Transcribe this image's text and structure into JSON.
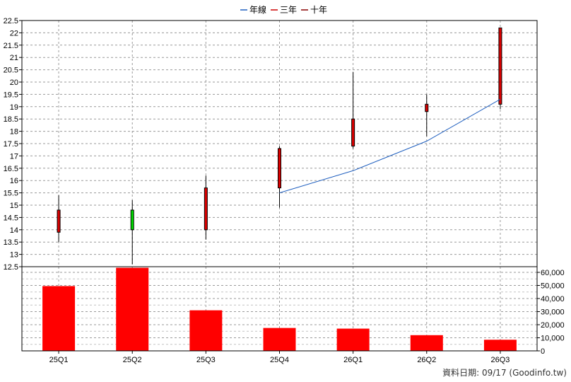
{
  "chart_data": [
    {
      "type": "candlestick",
      "legend": [
        {
          "name": "年線",
          "color": "#1f5fbf"
        },
        {
          "name": "三年",
          "color": "#cc0000"
        },
        {
          "name": "十年",
          "color": "#880000"
        }
      ],
      "legend_placement": "top-center",
      "categories": [
        "25Q1",
        "25Q2",
        "25Q3",
        "25Q4",
        "26Q1",
        "26Q2",
        "26Q3"
      ],
      "ohlc": [
        {
          "open": 13.9,
          "high": 15.4,
          "low": 13.5,
          "close": 14.8
        },
        {
          "open": 14.8,
          "high": 15.2,
          "low": 12.6,
          "close": 14.0
        },
        {
          "open": 14.0,
          "high": 16.2,
          "low": 13.6,
          "close": 15.7
        },
        {
          "open": 15.7,
          "high": 17.4,
          "low": 14.9,
          "close": 17.3
        },
        {
          "open": 17.4,
          "high": 20.4,
          "low": 17.3,
          "close": 18.5
        },
        {
          "open": 18.8,
          "high": 19.5,
          "low": 17.8,
          "close": 19.1
        },
        {
          "open": 19.1,
          "high": 22.2,
          "low": 18.9,
          "close": 22.2
        }
      ],
      "up_color": "#dd0000",
      "down_color": "#00dd00",
      "line_series": [
        {
          "name": "年線",
          "color": "#1f5fbf",
          "start_index": 3,
          "values": [
            15.5,
            16.4,
            17.6,
            19.3
          ]
        }
      ],
      "yticks": [
        "12.5",
        "13",
        "13.5",
        "14",
        "14.5",
        "15",
        "15.5",
        "16",
        "16.5",
        "17",
        "17.5",
        "18",
        "18.5",
        "19",
        "19.5",
        "20",
        "20.5",
        "21",
        "21.5",
        "22",
        "22.5"
      ],
      "ylim": [
        12.5,
        22.5
      ],
      "grid": true
    },
    {
      "type": "bar",
      "categories": [
        "25Q1",
        "25Q2",
        "25Q3",
        "25Q4",
        "26Q1",
        "26Q2",
        "26Q3"
      ],
      "values": [
        49500,
        63500,
        31000,
        17500,
        17000,
        12000,
        8500
      ],
      "bar_color": "#ff0000",
      "yticks": [
        "0",
        "10,000",
        "20,000",
        "30,000",
        "40,000",
        "50,000",
        "60,000"
      ],
      "ylim": [
        0,
        60000
      ],
      "yaxis_side": "right",
      "grid": true
    }
  ],
  "footer": "資料日期: 09/17  (Goodinfo.tw)"
}
